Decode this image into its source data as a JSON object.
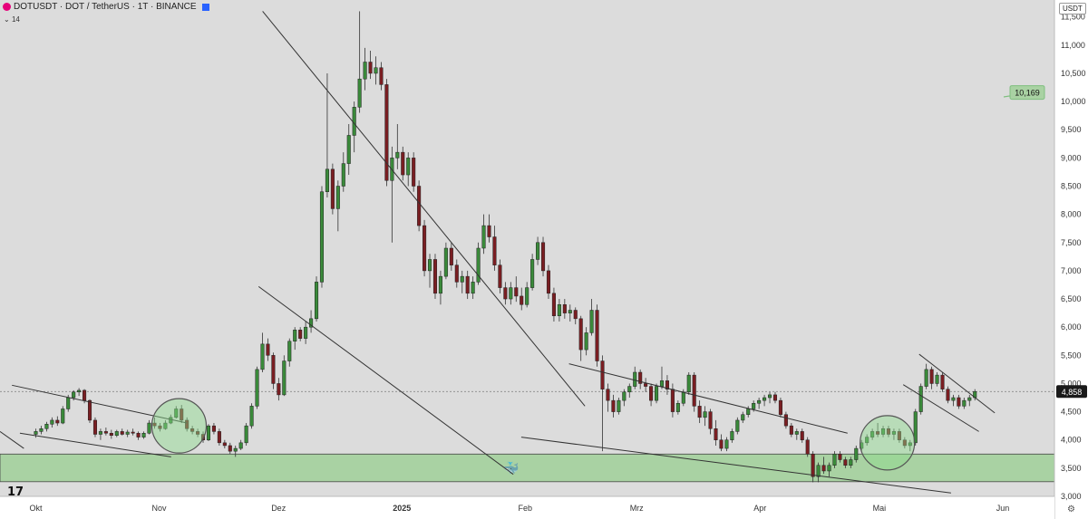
{
  "header": {
    "symbol_line": "DOTUSDT · DOT / TetherUS · 1T · BINANCE",
    "sub": "14"
  },
  "currency": "USDT",
  "colors": {
    "up": "#3a8a3a",
    "down": "#7a1e22",
    "zone": "#a9d2a3",
    "bubble": "#a9d2a3"
  },
  "icons": [
    "dot-logo-icon",
    "favorite-icon",
    "collapse-icon",
    "tradingview-logo-icon",
    "whale-icon",
    "settings-icon"
  ],
  "chart_data": {
    "type": "candlestick",
    "symbol": "DOTUSDT",
    "interval": "1T",
    "ylim": [
      3000,
      11800
    ],
    "y_ticks": [
      "11,500",
      "11,000",
      "10,500",
      "10,000",
      "9,500",
      "9,000",
      "8,500",
      "8,000",
      "7,500",
      "7,000",
      "6,500",
      "6,000",
      "5,500",
      "5,000",
      "4,500",
      "4,000",
      "3,500",
      "3,000"
    ],
    "y_tick_values": [
      11500,
      11000,
      10500,
      10000,
      9500,
      9000,
      8500,
      8000,
      7500,
      7000,
      6500,
      6000,
      5500,
      5000,
      4500,
      4000,
      3500,
      3000
    ],
    "x_ticks": [
      "Okt",
      "Nov",
      "Dez",
      "2025",
      "Feb",
      "Mrz",
      "Apr",
      "Mai",
      "Jun"
    ],
    "x_tick_days": [
      0,
      31,
      61,
      92,
      123,
      151,
      182,
      212,
      243
    ],
    "x_range_days": [
      -9,
      256
    ],
    "last_price": "4,858",
    "last_price_value": 4858,
    "marker_label": "10,169",
    "marker_value": 10169,
    "support_zone": [
      3260,
      3750
    ],
    "ohlc": [
      [
        4100,
        4200,
        4040,
        4150
      ],
      [
        4150,
        4250,
        4100,
        4200
      ],
      [
        4200,
        4320,
        4150,
        4280
      ],
      [
        4280,
        4400,
        4220,
        4350
      ],
      [
        4350,
        4420,
        4250,
        4300
      ],
      [
        4300,
        4600,
        4280,
        4550
      ],
      [
        4550,
        4800,
        4500,
        4750
      ],
      [
        4750,
        4880,
        4700,
        4850
      ],
      [
        4850,
        4920,
        4780,
        4880
      ],
      [
        4880,
        4900,
        4650,
        4700
      ],
      [
        4700,
        4720,
        4300,
        4350
      ],
      [
        4350,
        4400,
        4050,
        4100
      ],
      [
        4100,
        4200,
        4000,
        4150
      ],
      [
        4150,
        4220,
        4080,
        4120
      ],
      [
        4120,
        4180,
        4020,
        4080
      ],
      [
        4080,
        4180,
        4050,
        4150
      ],
      [
        4150,
        4200,
        4080,
        4100
      ],
      [
        4100,
        4180,
        4050,
        4140
      ],
      [
        4140,
        4200,
        4080,
        4120
      ],
      [
        4120,
        4150,
        4000,
        4050
      ],
      [
        4050,
        4150,
        4020,
        4120
      ],
      [
        4120,
        4350,
        4100,
        4300
      ],
      [
        4300,
        4400,
        4200,
        4250
      ],
      [
        4250,
        4300,
        4150,
        4200
      ],
      [
        4200,
        4350,
        4180,
        4300
      ],
      [
        4300,
        4450,
        4280,
        4400
      ],
      [
        4400,
        4600,
        4380,
        4550
      ],
      [
        4550,
        4620,
        4300,
        4350
      ],
      [
        4350,
        4400,
        4150,
        4200
      ],
      [
        4200,
        4250,
        4100,
        4150
      ],
      [
        4150,
        4200,
        4050,
        4100
      ],
      [
        4100,
        4150,
        3950,
        4000
      ],
      [
        4000,
        4280,
        3980,
        4250
      ],
      [
        4250,
        4300,
        4100,
        4150
      ],
      [
        4150,
        4200,
        3900,
        3950
      ],
      [
        3950,
        4000,
        3850,
        3900
      ],
      [
        3900,
        3950,
        3750,
        3800
      ],
      [
        3800,
        3900,
        3700,
        3850
      ],
      [
        3850,
        4000,
        3820,
        3950
      ],
      [
        3950,
        4300,
        3900,
        4250
      ],
      [
        4250,
        4650,
        4200,
        4600
      ],
      [
        4600,
        5300,
        4550,
        5250
      ],
      [
        5250,
        5900,
        5200,
        5700
      ],
      [
        5700,
        5800,
        5400,
        5500
      ],
      [
        5500,
        5550,
        4900,
        5000
      ],
      [
        5000,
        5100,
        4700,
        4800
      ],
      [
        4800,
        5500,
        4780,
        5400
      ],
      [
        5400,
        5800,
        5300,
        5750
      ],
      [
        5750,
        6000,
        5600,
        5950
      ],
      [
        5950,
        6000,
        5750,
        5800
      ],
      [
        5800,
        6100,
        5700,
        6000
      ],
      [
        6000,
        6300,
        5900,
        6150
      ],
      [
        6150,
        6900,
        6100,
        6800
      ],
      [
        6800,
        8500,
        6700,
        8400
      ],
      [
        8400,
        10500,
        8300,
        8800
      ],
      [
        8800,
        8900,
        8000,
        8100
      ],
      [
        8100,
        8600,
        7700,
        8500
      ],
      [
        8500,
        9100,
        8400,
        8900
      ],
      [
        8900,
        9600,
        8700,
        9400
      ],
      [
        9400,
        10000,
        9100,
        9900
      ],
      [
        9900,
        11600,
        9800,
        10400
      ],
      [
        10400,
        10950,
        10200,
        10700
      ],
      [
        10700,
        10900,
        10400,
        10500
      ],
      [
        10500,
        10800,
        10300,
        10600
      ],
      [
        10600,
        10700,
        10200,
        10300
      ],
      [
        10300,
        10400,
        8500,
        8600
      ],
      [
        8600,
        9200,
        7500,
        9000
      ],
      [
        9000,
        9600,
        8800,
        9100
      ],
      [
        9100,
        9200,
        8600,
        8700
      ],
      [
        8700,
        9100,
        8500,
        9000
      ],
      [
        9000,
        9100,
        8400,
        8500
      ],
      [
        8500,
        8600,
        7700,
        7800
      ],
      [
        7800,
        7900,
        6900,
        7000
      ],
      [
        7000,
        7300,
        6700,
        7200
      ],
      [
        7200,
        7300,
        6500,
        6600
      ],
      [
        6600,
        7000,
        6400,
        6900
      ],
      [
        6900,
        7500,
        6850,
        7400
      ],
      [
        7400,
        7500,
        7000,
        7100
      ],
      [
        7100,
        7200,
        6700,
        6800
      ],
      [
        6800,
        7000,
        6600,
        6900
      ],
      [
        6900,
        7000,
        6500,
        6600
      ],
      [
        6600,
        6900,
        6500,
        6800
      ],
      [
        6800,
        7500,
        6750,
        7400
      ],
      [
        7400,
        8000,
        7300,
        7800
      ],
      [
        7800,
        8000,
        7500,
        7600
      ],
      [
        7600,
        7800,
        7000,
        7100
      ],
      [
        7100,
        7200,
        6600,
        6700
      ],
      [
        6700,
        6800,
        6400,
        6500
      ],
      [
        6500,
        6800,
        6400,
        6700
      ],
      [
        6700,
        6900,
        6450,
        6550
      ],
      [
        6550,
        6700,
        6300,
        6400
      ],
      [
        6400,
        6800,
        6350,
        6700
      ],
      [
        6700,
        7300,
        6650,
        7200
      ],
      [
        7200,
        7600,
        7100,
        7500
      ],
      [
        7500,
        7600,
        6900,
        7000
      ],
      [
        7000,
        7100,
        6500,
        6600
      ],
      [
        6600,
        6700,
        6100,
        6200
      ],
      [
        6200,
        6500,
        6100,
        6400
      ],
      [
        6400,
        6500,
        6150,
        6250
      ],
      [
        6250,
        6400,
        6100,
        6300
      ],
      [
        6300,
        6350,
        6050,
        6150
      ],
      [
        6150,
        6200,
        5400,
        5600
      ],
      [
        5600,
        6000,
        5500,
        5900
      ],
      [
        5900,
        6500,
        5850,
        6300
      ],
      [
        6300,
        6400,
        5300,
        5400
      ],
      [
        5400,
        5500,
        3800,
        4900
      ],
      [
        4900,
        5000,
        4500,
        4700
      ],
      [
        4700,
        4800,
        4400,
        4500
      ],
      [
        4500,
        4750,
        4450,
        4700
      ],
      [
        4700,
        4900,
        4600,
        4850
      ],
      [
        4850,
        5000,
        4750,
        4950
      ],
      [
        4950,
        5300,
        4900,
        5200
      ],
      [
        5200,
        5250,
        4900,
        5000
      ],
      [
        5000,
        5100,
        4850,
        4950
      ],
      [
        4950,
        5000,
        4600,
        4700
      ],
      [
        4700,
        5000,
        4650,
        4950
      ],
      [
        4950,
        5300,
        4900,
        5050
      ],
      [
        5050,
        5150,
        4800,
        4900
      ],
      [
        4900,
        5000,
        4400,
        4500
      ],
      [
        4500,
        4700,
        4450,
        4650
      ],
      [
        4650,
        4900,
        4600,
        4850
      ],
      [
        4850,
        5200,
        4800,
        5150
      ],
      [
        5150,
        5200,
        4500,
        4600
      ],
      [
        4600,
        4700,
        4300,
        4400
      ],
      [
        4400,
        4600,
        4250,
        4500
      ],
      [
        4500,
        4550,
        4100,
        4200
      ],
      [
        4200,
        4350,
        3900,
        4000
      ],
      [
        4000,
        4100,
        3800,
        3850
      ],
      [
        3850,
        4050,
        3800,
        4000
      ],
      [
        4000,
        4200,
        3950,
        4150
      ],
      [
        4150,
        4400,
        4100,
        4350
      ],
      [
        4350,
        4500,
        4300,
        4450
      ],
      [
        4450,
        4600,
        4400,
        4550
      ],
      [
        4550,
        4700,
        4500,
        4650
      ],
      [
        4650,
        4750,
        4550,
        4700
      ],
      [
        4700,
        4800,
        4600,
        4750
      ],
      [
        4750,
        4850,
        4650,
        4800
      ],
      [
        4800,
        4850,
        4650,
        4700
      ],
      [
        4700,
        4750,
        4400,
        4450
      ],
      [
        4450,
        4500,
        4200,
        4250
      ],
      [
        4250,
        4300,
        4050,
        4100
      ],
      [
        4100,
        4200,
        4000,
        4150
      ],
      [
        4150,
        4200,
        3950,
        4000
      ],
      [
        4000,
        4050,
        3700,
        3750
      ],
      [
        3750,
        3800,
        3250,
        3350
      ],
      [
        3350,
        3600,
        3250,
        3550
      ],
      [
        3550,
        3700,
        3400,
        3450
      ],
      [
        3450,
        3600,
        3350,
        3550
      ],
      [
        3550,
        3800,
        3500,
        3750
      ],
      [
        3750,
        3800,
        3600,
        3650
      ],
      [
        3650,
        3700,
        3500,
        3550
      ],
      [
        3550,
        3700,
        3500,
        3650
      ],
      [
        3650,
        3900,
        3600,
        3850
      ],
      [
        3850,
        4000,
        3800,
        3950
      ],
      [
        3950,
        4100,
        3900,
        4050
      ],
      [
        4050,
        4200,
        4000,
        4150
      ],
      [
        4150,
        4300,
        4050,
        4100
      ],
      [
        4100,
        4250,
        4050,
        4200
      ],
      [
        4200,
        4250,
        4050,
        4100
      ],
      [
        4100,
        4200,
        4000,
        4150
      ],
      [
        4150,
        4200,
        3950,
        4000
      ],
      [
        4000,
        4050,
        3850,
        3900
      ],
      [
        3900,
        4000,
        3800,
        3950
      ],
      [
        3950,
        4550,
        3900,
        4500
      ],
      [
        4500,
        5000,
        4450,
        4950
      ],
      [
        4950,
        5350,
        4900,
        5250
      ],
      [
        5250,
        5300,
        4900,
        5000
      ],
      [
        5000,
        5200,
        4950,
        5150
      ],
      [
        5150,
        5200,
        4850,
        4900
      ],
      [
        4900,
        4950,
        4650,
        4700
      ],
      [
        4700,
        4800,
        4600,
        4750
      ],
      [
        4750,
        4800,
        4550,
        4600
      ],
      [
        4600,
        4750,
        4550,
        4700
      ],
      [
        4700,
        4800,
        4600,
        4750
      ],
      [
        4750,
        4900,
        4700,
        4858
      ]
    ],
    "trendlines": [
      [
        [
          -9,
          4150
        ],
        [
          -3,
          3850
        ]
      ],
      [
        [
          -6,
          4970
        ],
        [
          38,
          4300
        ]
      ],
      [
        [
          -4,
          4120
        ],
        [
          34,
          3700
        ]
      ],
      [
        [
          57,
          11600
        ],
        [
          138,
          4600
        ]
      ],
      [
        [
          56,
          6720
        ],
        [
          120,
          3390
        ]
      ],
      [
        [
          122,
          4050
        ],
        [
          230,
          3060
        ]
      ],
      [
        [
          134,
          5350
        ],
        [
          204,
          4120
        ]
      ],
      [
        [
          222,
          5520
        ],
        [
          241,
          4480
        ]
      ],
      [
        [
          218,
          4980
        ],
        [
          237,
          4150
        ]
      ]
    ],
    "highlight_circles": [
      [
        36,
        4250
      ],
      [
        214,
        3950
      ]
    ]
  }
}
